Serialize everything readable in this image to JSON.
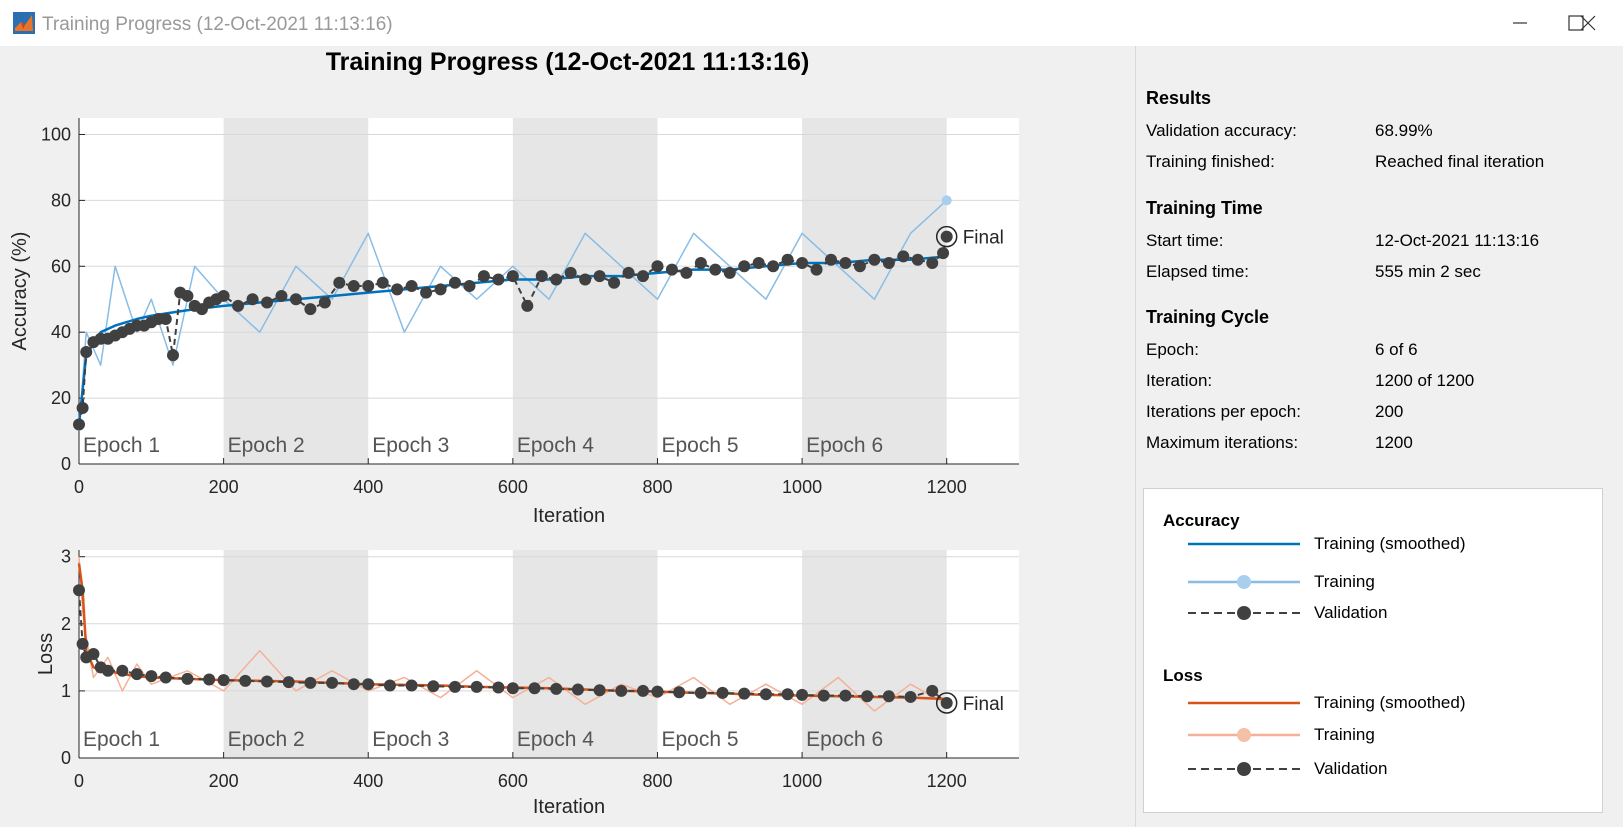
{
  "window": {
    "title": "Training Progress (12-Oct-2021 11:13:16)",
    "buttons": {
      "minimize": "minimize-icon",
      "maximize": "maximize-icon",
      "close": "close-icon"
    }
  },
  "plot": {
    "title": "Training Progress (12-Oct-2021 11:13:16)",
    "epoch_labels": [
      "Epoch 1",
      "Epoch 2",
      "Epoch 3",
      "Epoch 4",
      "Epoch 5",
      "Epoch 6"
    ],
    "final_label": "Final"
  },
  "colors": {
    "acc_smoothed": "#0072bd",
    "acc_raw": "#88bde6",
    "loss_smoothed": "#d95319",
    "loss_raw": "#f4b197",
    "validation": "#404040",
    "epoch_shade": "#e6e6e6"
  },
  "chart_data": [
    {
      "type": "line",
      "ylabel": "Accuracy (%)",
      "xlabel": "Iteration",
      "xlim": [
        0,
        1300
      ],
      "ylim": [
        0,
        105
      ],
      "xticks": [
        "0",
        "200",
        "400",
        "600",
        "800",
        "1000",
        "1200"
      ],
      "yticks": [
        "0",
        "20",
        "40",
        "60",
        "80",
        "100"
      ],
      "grid": true,
      "series": [
        {
          "name": "Training (smoothed)",
          "x": [
            0,
            10,
            30,
            50,
            80,
            100,
            130,
            160,
            200,
            250,
            300,
            350,
            400,
            450,
            500,
            550,
            600,
            650,
            700,
            750,
            800,
            850,
            900,
            950,
            1000,
            1050,
            1100,
            1150,
            1200
          ],
          "values": [
            12,
            33,
            40,
            42,
            44,
            45,
            46,
            47,
            48,
            49,
            50,
            51,
            52,
            53,
            54,
            55,
            56,
            56,
            57,
            57,
            58,
            59,
            59,
            60,
            61,
            61,
            62,
            62,
            63
          ]
        },
        {
          "name": "Training",
          "x": [
            0,
            10,
            30,
            50,
            80,
            100,
            130,
            160,
            200,
            250,
            300,
            350,
            400,
            450,
            500,
            550,
            600,
            650,
            700,
            750,
            800,
            850,
            900,
            950,
            1000,
            1050,
            1100,
            1150,
            1200
          ],
          "values": [
            10,
            40,
            30,
            60,
            40,
            50,
            30,
            60,
            50,
            40,
            60,
            50,
            70,
            40,
            60,
            50,
            60,
            50,
            70,
            60,
            50,
            70,
            60,
            50,
            70,
            60,
            50,
            70,
            80
          ]
        },
        {
          "name": "Validation",
          "x": [
            0,
            5,
            10,
            20,
            30,
            40,
            50,
            60,
            70,
            80,
            90,
            100,
            110,
            120,
            130,
            140,
            150,
            160,
            170,
            180,
            190,
            200,
            220,
            240,
            260,
            280,
            300,
            320,
            340,
            360,
            380,
            400,
            420,
            440,
            460,
            480,
            500,
            520,
            540,
            560,
            580,
            600,
            620,
            640,
            660,
            680,
            700,
            720,
            740,
            760,
            780,
            800,
            820,
            840,
            860,
            880,
            900,
            920,
            940,
            960,
            980,
            1000,
            1020,
            1040,
            1060,
            1080,
            1100,
            1120,
            1140,
            1160,
            1180,
            1195,
            1200
          ],
          "values": [
            12,
            17,
            34,
            37,
            38,
            38,
            39,
            40,
            41,
            42,
            42,
            43,
            44,
            44,
            33,
            52,
            51,
            48,
            47,
            49,
            50,
            51,
            48,
            50,
            49,
            51,
            50,
            47,
            49,
            55,
            54,
            54,
            55,
            53,
            54,
            52,
            53,
            55,
            54,
            57,
            56,
            57,
            48,
            57,
            56,
            58,
            56,
            57,
            55,
            58,
            57,
            60,
            59,
            58,
            61,
            59,
            58,
            60,
            61,
            60,
            62,
            61,
            59,
            62,
            61,
            60,
            62,
            61,
            63,
            62,
            61,
            64,
            69
          ]
        }
      ]
    },
    {
      "type": "line",
      "ylabel": "Loss",
      "xlabel": "Iteration",
      "xlim": [
        0,
        1300
      ],
      "ylim": [
        0,
        3.1
      ],
      "xticks": [
        "0",
        "200",
        "400",
        "600",
        "800",
        "1000",
        "1200"
      ],
      "yticks": [
        "0",
        "1",
        "2",
        "3"
      ],
      "grid": true,
      "series": [
        {
          "name": "Training (smoothed)",
          "x": [
            0,
            5,
            10,
            20,
            40,
            60,
            80,
            100,
            150,
            200,
            250,
            300,
            350,
            400,
            450,
            500,
            550,
            600,
            650,
            700,
            750,
            800,
            850,
            900,
            950,
            1000,
            1050,
            1100,
            1150,
            1200
          ],
          "values": [
            2.9,
            2.5,
            1.6,
            1.35,
            1.3,
            1.25,
            1.22,
            1.2,
            1.18,
            1.16,
            1.15,
            1.14,
            1.12,
            1.1,
            1.09,
            1.08,
            1.06,
            1.05,
            1.04,
            1.02,
            1.0,
            0.99,
            0.97,
            0.96,
            0.94,
            0.93,
            0.92,
            0.91,
            0.9,
            0.88
          ]
        },
        {
          "name": "Training",
          "x": [
            0,
            5,
            10,
            20,
            40,
            60,
            80,
            100,
            150,
            200,
            250,
            300,
            350,
            400,
            450,
            500,
            550,
            600,
            650,
            700,
            750,
            800,
            850,
            900,
            950,
            1000,
            1050,
            1100,
            1150,
            1200
          ],
          "values": [
            3.0,
            2.2,
            1.8,
            1.2,
            1.5,
            1.0,
            1.4,
            1.1,
            1.3,
            1.0,
            1.6,
            1.0,
            1.3,
            1.0,
            1.2,
            0.9,
            1.3,
            0.9,
            1.2,
            0.8,
            1.1,
            0.9,
            1.2,
            0.8,
            1.1,
            0.8,
            1.2,
            0.7,
            1.1,
            0.8
          ]
        },
        {
          "name": "Validation",
          "x": [
            0,
            5,
            10,
            20,
            30,
            40,
            60,
            80,
            100,
            120,
            150,
            180,
            200,
            230,
            260,
            290,
            320,
            350,
            380,
            400,
            430,
            460,
            490,
            520,
            550,
            580,
            600,
            630,
            660,
            690,
            720,
            750,
            780,
            800,
            830,
            860,
            890,
            920,
            950,
            980,
            1000,
            1030,
            1060,
            1090,
            1120,
            1150,
            1180,
            1200
          ],
          "values": [
            2.5,
            1.7,
            1.5,
            1.55,
            1.35,
            1.3,
            1.3,
            1.25,
            1.22,
            1.2,
            1.18,
            1.17,
            1.16,
            1.15,
            1.14,
            1.13,
            1.12,
            1.12,
            1.1,
            1.1,
            1.08,
            1.08,
            1.07,
            1.06,
            1.06,
            1.05,
            1.04,
            1.04,
            1.03,
            1.02,
            1.01,
            1.0,
            1.0,
            0.99,
            0.98,
            0.97,
            0.97,
            0.96,
            0.95,
            0.95,
            0.94,
            0.93,
            0.93,
            0.92,
            0.92,
            0.91,
            1.0,
            0.82
          ]
        }
      ]
    }
  ],
  "results": {
    "heading": "Results",
    "rows": [
      {
        "label": "Validation accuracy:",
        "value": "68.99%"
      },
      {
        "label": "Training finished:",
        "value": "Reached final iteration"
      }
    ]
  },
  "training_time": {
    "heading": "Training Time",
    "rows": [
      {
        "label": "Start time:",
        "value": "12-Oct-2021 11:13:16"
      },
      {
        "label": "Elapsed time:",
        "value": "555 min 2 sec"
      }
    ]
  },
  "training_cycle": {
    "heading": "Training Cycle",
    "rows": [
      {
        "label": "Epoch:",
        "value": "6 of 6"
      },
      {
        "label": "Iteration:",
        "value": "1200 of 1200"
      },
      {
        "label": "Iterations per epoch:",
        "value": "200"
      },
      {
        "label": "Maximum iterations:",
        "value": "1200"
      }
    ]
  },
  "legend": {
    "accuracy_heading": "Accuracy",
    "accuracy_items": [
      "Training (smoothed)",
      "Training",
      "Validation"
    ],
    "loss_heading": "Loss",
    "loss_items": [
      "Training (smoothed)",
      "Training",
      "Validation"
    ]
  }
}
